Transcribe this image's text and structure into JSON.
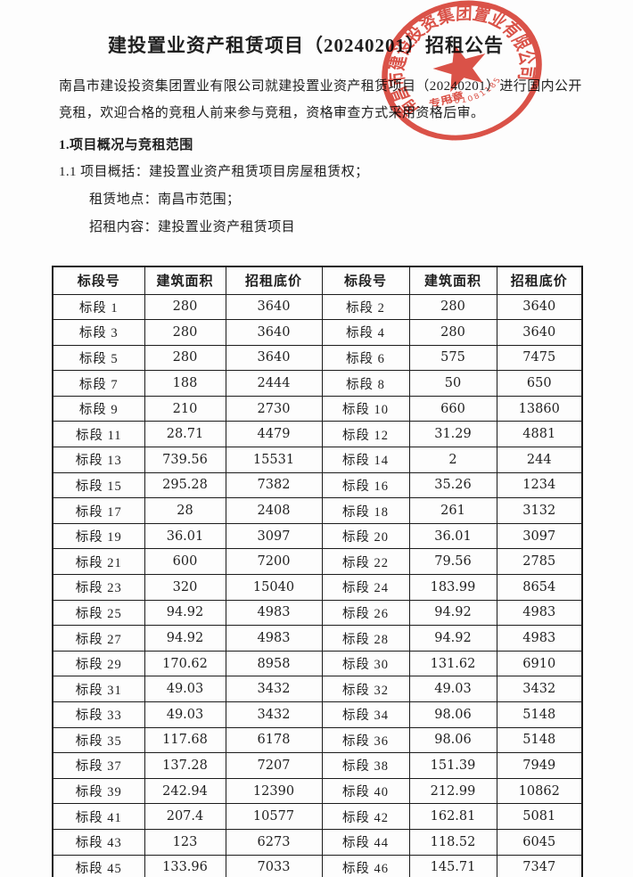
{
  "doc": {
    "title": "建投置业资产租赁项目（20240201）招租公告",
    "intro_lines": [
      "南昌市建设投资集团置业有限公司就建投置业资产租赁项目（20240201）进行国内公开",
      "竞租，欢迎合格的竞租人前来参与竞租，资格审查方式采用资格后审。"
    ],
    "section_heading": "1.项目概况与竞租范围",
    "clauses": [
      "1.1 项目概括：建投置业资产租赁项目房屋租赁权；",
      "租赁地点：南昌市范围；",
      "招租内容：建投置业资产租赁项目"
    ],
    "colors": {
      "ink": "#1f1f1f",
      "paper": "#fdfdfd"
    }
  },
  "stamp": {
    "ring_text": "南昌市建设投资集团置业有限公司",
    "serial": "3601081185",
    "inner_text": "专用章",
    "color": "#d73a2e"
  },
  "table": {
    "headers": [
      "标段号",
      "建筑面积",
      "招租底价",
      "标段号",
      "建筑面积",
      "招租底价"
    ],
    "rows": [
      [
        "标段 1",
        "280",
        "3640",
        "标段 2",
        "280",
        "3640"
      ],
      [
        "标段 3",
        "280",
        "3640",
        "标段 4",
        "280",
        "3640"
      ],
      [
        "标段 5",
        "280",
        "3640",
        "标段 6",
        "575",
        "7475"
      ],
      [
        "标段 7",
        "188",
        "2444",
        "标段 8",
        "50",
        "650"
      ],
      [
        "标段 9",
        "210",
        "2730",
        "标段 10",
        "660",
        "13860"
      ],
      [
        "标段 11",
        "28.71",
        "4479",
        "标段 12",
        "31.29",
        "4881"
      ],
      [
        "标段 13",
        "739.56",
        "15531",
        "标段 14",
        "2",
        "244"
      ],
      [
        "标段 15",
        "295.28",
        "7382",
        "标段 16",
        "35.26",
        "1234"
      ],
      [
        "标段 17",
        "28",
        "2408",
        "标段 18",
        "261",
        "3132"
      ],
      [
        "标段 19",
        "36.01",
        "3097",
        "标段 20",
        "36.01",
        "3097"
      ],
      [
        "标段 21",
        "600",
        "7200",
        "标段 22",
        "79.56",
        "2785"
      ],
      [
        "标段 23",
        "320",
        "15040",
        "标段 24",
        "183.99",
        "8654"
      ],
      [
        "标段 25",
        "94.92",
        "4983",
        "标段 26",
        "94.92",
        "4983"
      ],
      [
        "标段 27",
        "94.92",
        "4983",
        "标段 28",
        "94.92",
        "4983"
      ],
      [
        "标段 29",
        "170.62",
        "8958",
        "标段 30",
        "131.62",
        "6910"
      ],
      [
        "标段 31",
        "49.03",
        "3432",
        "标段 32",
        "49.03",
        "3432"
      ],
      [
        "标段 33",
        "49.03",
        "3432",
        "标段 34",
        "98.06",
        "5148"
      ],
      [
        "标段 35",
        "117.68",
        "6178",
        "标段 36",
        "98.06",
        "5148"
      ],
      [
        "标段 37",
        "137.28",
        "7207",
        "标段 38",
        "151.39",
        "7949"
      ],
      [
        "标段 39",
        "242.94",
        "12390",
        "标段 40",
        "212.99",
        "10862"
      ],
      [
        "标段 41",
        "207.4",
        "10577",
        "标段 42",
        "162.81",
        "5081"
      ],
      [
        "标段 43",
        "123",
        "6273",
        "标段 44",
        "118.52",
        "6045"
      ],
      [
        "标段 45",
        "133.96",
        "7033",
        "标段 46",
        "145.71",
        "7347"
      ]
    ]
  }
}
